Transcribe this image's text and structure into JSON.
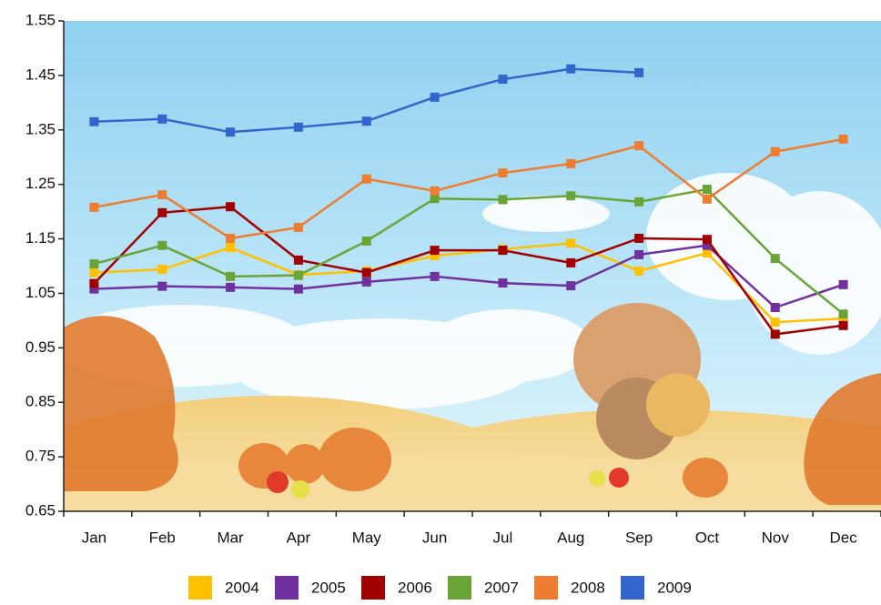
{
  "chart_data": {
    "type": "line",
    "categories": [
      "Jan",
      "Feb",
      "Mar",
      "Apr",
      "May",
      "Jun",
      "Jul",
      "Aug",
      "Sep",
      "Oct",
      "Nov",
      "Dec"
    ],
    "series": [
      {
        "name": "2004",
        "color": "#ffc000",
        "values": [
          1.088,
          1.094,
          1.134,
          1.084,
          1.091,
          1.119,
          1.131,
          1.142,
          1.091,
          1.124,
          0.997,
          1.004
        ]
      },
      {
        "name": "2005",
        "color": "#7030a0",
        "values": [
          1.058,
          1.063,
          1.061,
          1.058,
          1.071,
          1.081,
          1.069,
          1.064,
          1.121,
          1.138,
          1.024,
          1.066
        ]
      },
      {
        "name": "2006",
        "color": "#a00000",
        "values": [
          1.068,
          1.198,
          1.209,
          1.111,
          1.088,
          1.129,
          1.129,
          1.106,
          1.151,
          1.149,
          0.975,
          0.991
        ]
      },
      {
        "name": "2007",
        "color": "#6aa436",
        "values": [
          1.104,
          1.138,
          1.081,
          1.083,
          1.146,
          1.224,
          1.222,
          1.229,
          1.218,
          1.241,
          1.114,
          1.012
        ]
      },
      {
        "name": "2008",
        "color": "#ed7d31",
        "values": [
          1.208,
          1.231,
          1.151,
          1.171,
          1.26,
          1.238,
          1.271,
          1.288,
          1.321,
          1.223,
          1.31,
          1.333
        ]
      },
      {
        "name": "2009",
        "color": "#3366cc",
        "values": [
          1.365,
          1.37,
          1.346,
          1.355,
          1.366,
          1.41,
          1.443,
          1.462,
          1.455,
          null,
          null,
          null
        ]
      }
    ],
    "ylim": [
      0.65,
      1.55
    ],
    "yticks": [
      0.65,
      0.75,
      0.85,
      0.95,
      1.05,
      1.15,
      1.25,
      1.35,
      1.45,
      1.55
    ],
    "legend": "bottom"
  }
}
